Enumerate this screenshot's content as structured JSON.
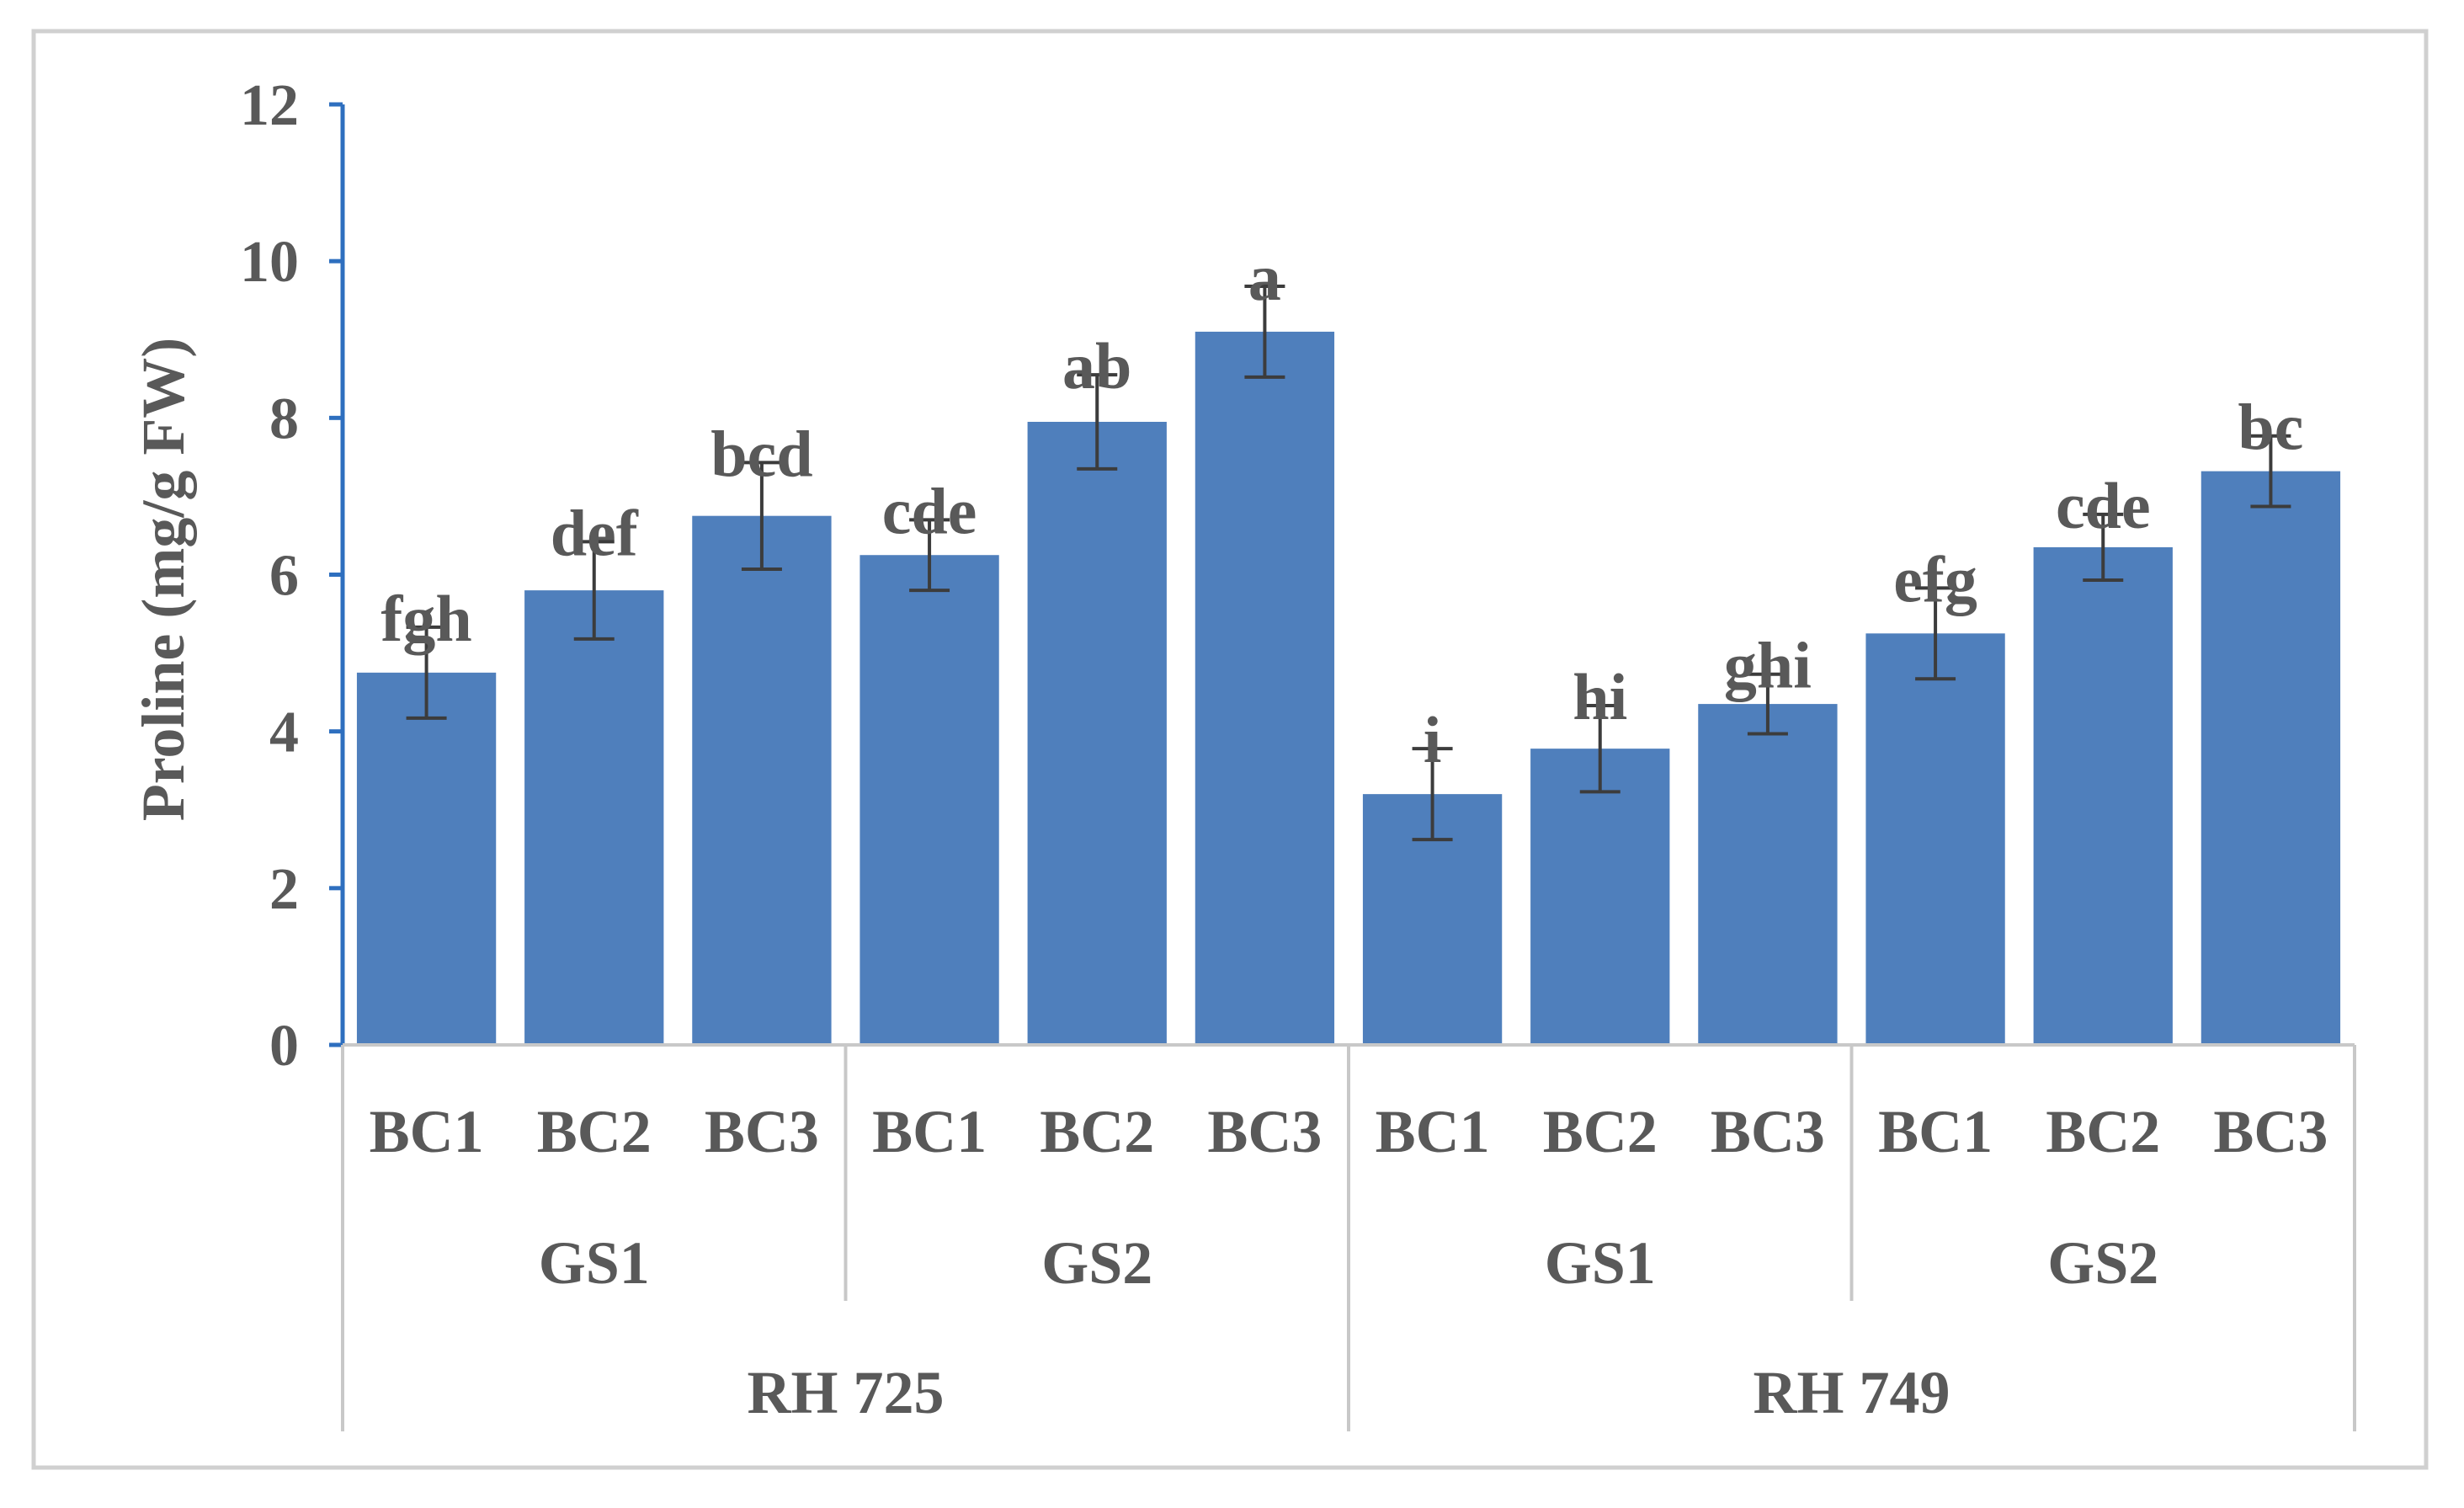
{
  "chart_data": {
    "type": "bar",
    "title": "",
    "ylabel": "Proline (mg/g FW)",
    "xlabel": "",
    "ylim": [
      0,
      12
    ],
    "yticks": [
      0,
      2,
      4,
      6,
      8,
      10,
      12
    ],
    "grid": false,
    "legend": "none",
    "categories": [
      "BC1",
      "BC2",
      "BC3",
      "BC1",
      "BC2",
      "BC3",
      "BC1",
      "BC2",
      "BC3",
      "BC1",
      "BC2",
      "BC3"
    ],
    "group_level1": [
      {
        "label": "GS1",
        "span": 3
      },
      {
        "label": "GS2",
        "span": 3
      },
      {
        "label": "GS1",
        "span": 3
      },
      {
        "label": "GS2",
        "span": 3
      }
    ],
    "group_level2": [
      {
        "label": "RH 725",
        "span": 6
      },
      {
        "label": "RH 749",
        "span": 6
      }
    ],
    "values": [
      4.75,
      5.8,
      6.75,
      6.25,
      7.95,
      9.1,
      3.2,
      3.78,
      4.35,
      5.25,
      6.35,
      7.32
    ],
    "errors": [
      0.58,
      0.62,
      0.68,
      0.45,
      0.6,
      0.58,
      0.58,
      0.55,
      0.38,
      0.58,
      0.42,
      0.45
    ],
    "labels": [
      "fgh",
      "def",
      "bcd",
      "cde",
      "ab",
      "a",
      "i",
      "hi",
      "ghi",
      "efg",
      "cde",
      "bc"
    ],
    "colors": {
      "bar": "#4f7fbc",
      "axis": "#2e6fbf",
      "error": "#3c3c3c",
      "text": "#595959",
      "separator": "#c8c8c8",
      "frame": "#d0d0d0"
    }
  }
}
